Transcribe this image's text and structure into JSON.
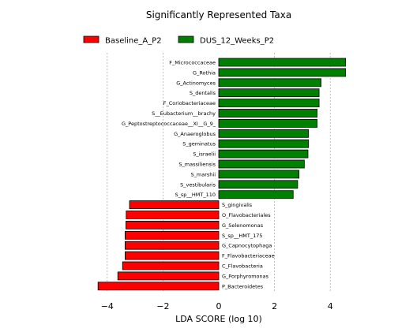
{
  "chart_data": {
    "type": "bar",
    "orientation": "horizontal",
    "title": "Significantly Represented Taxa",
    "xlabel": "LDA SCORE (log 10)",
    "ylabel": "",
    "xlim": [
      -4.5,
      5
    ],
    "xticks": [
      -4,
      -2,
      0,
      2,
      4
    ],
    "xtick_labels": [
      "−4",
      "−2",
      "0",
      "2",
      "4"
    ],
    "grid": "vertical dashed",
    "legend_position": "top-left",
    "series": [
      {
        "name": "Baseline_A_P2",
        "color": "#ff0000"
      },
      {
        "name": "DUS_12_Weeks_P2",
        "color": "#008000"
      }
    ],
    "bars": [
      {
        "label": "F_Micrococcaceae",
        "value": 4.55,
        "group": "DUS_12_Weeks_P2"
      },
      {
        "label": "G_Rothia",
        "value": 4.55,
        "group": "DUS_12_Weeks_P2"
      },
      {
        "label": "G_Actinomyces",
        "value": 3.67,
        "group": "DUS_12_Weeks_P2"
      },
      {
        "label": "S_dentalis",
        "value": 3.6,
        "group": "DUS_12_Weeks_P2"
      },
      {
        "label": "F_Coriobacteriaceae",
        "value": 3.6,
        "group": "DUS_12_Weeks_P2"
      },
      {
        "label": "S__Eubacterium__brachy",
        "value": 3.53,
        "group": "DUS_12_Weeks_P2"
      },
      {
        "label": "G_Peptostreptococcaceae__XI__G_9_",
        "value": 3.53,
        "group": "DUS_12_Weeks_P2"
      },
      {
        "label": "G_Anaeroglobus",
        "value": 3.22,
        "group": "DUS_12_Weeks_P2"
      },
      {
        "label": "S_geminatus",
        "value": 3.22,
        "group": "DUS_12_Weeks_P2"
      },
      {
        "label": "S_israelii",
        "value": 3.2,
        "group": "DUS_12_Weeks_P2"
      },
      {
        "label": "S_massiliensis",
        "value": 3.07,
        "group": "DUS_12_Weeks_P2"
      },
      {
        "label": "S_marshii",
        "value": 2.88,
        "group": "DUS_12_Weeks_P2"
      },
      {
        "label": "S_vestibularis",
        "value": 2.83,
        "group": "DUS_12_Weeks_P2"
      },
      {
        "label": "S_sp__HMT_110",
        "value": 2.67,
        "group": "DUS_12_Weeks_P2"
      },
      {
        "label": "S_gingivalis",
        "value": -3.2,
        "group": "Baseline_A_P2"
      },
      {
        "label": "O_Flavobacteriales",
        "value": -3.32,
        "group": "Baseline_A_P2"
      },
      {
        "label": "G_Selenomonas",
        "value": -3.33,
        "group": "Baseline_A_P2"
      },
      {
        "label": "S_sp__HMT_175",
        "value": -3.36,
        "group": "Baseline_A_P2"
      },
      {
        "label": "G_Capnocytophaga",
        "value": -3.36,
        "group": "Baseline_A_P2"
      },
      {
        "label": "F_Flavobacteriaceae",
        "value": -3.36,
        "group": "Baseline_A_P2"
      },
      {
        "label": "C_Flavobacteria",
        "value": -3.45,
        "group": "Baseline_A_P2"
      },
      {
        "label": "G_Porphyromonas",
        "value": -3.62,
        "group": "Baseline_A_P2"
      },
      {
        "label": "P_Bacteroidetes",
        "value": -4.33,
        "group": "Baseline_A_P2"
      }
    ]
  }
}
